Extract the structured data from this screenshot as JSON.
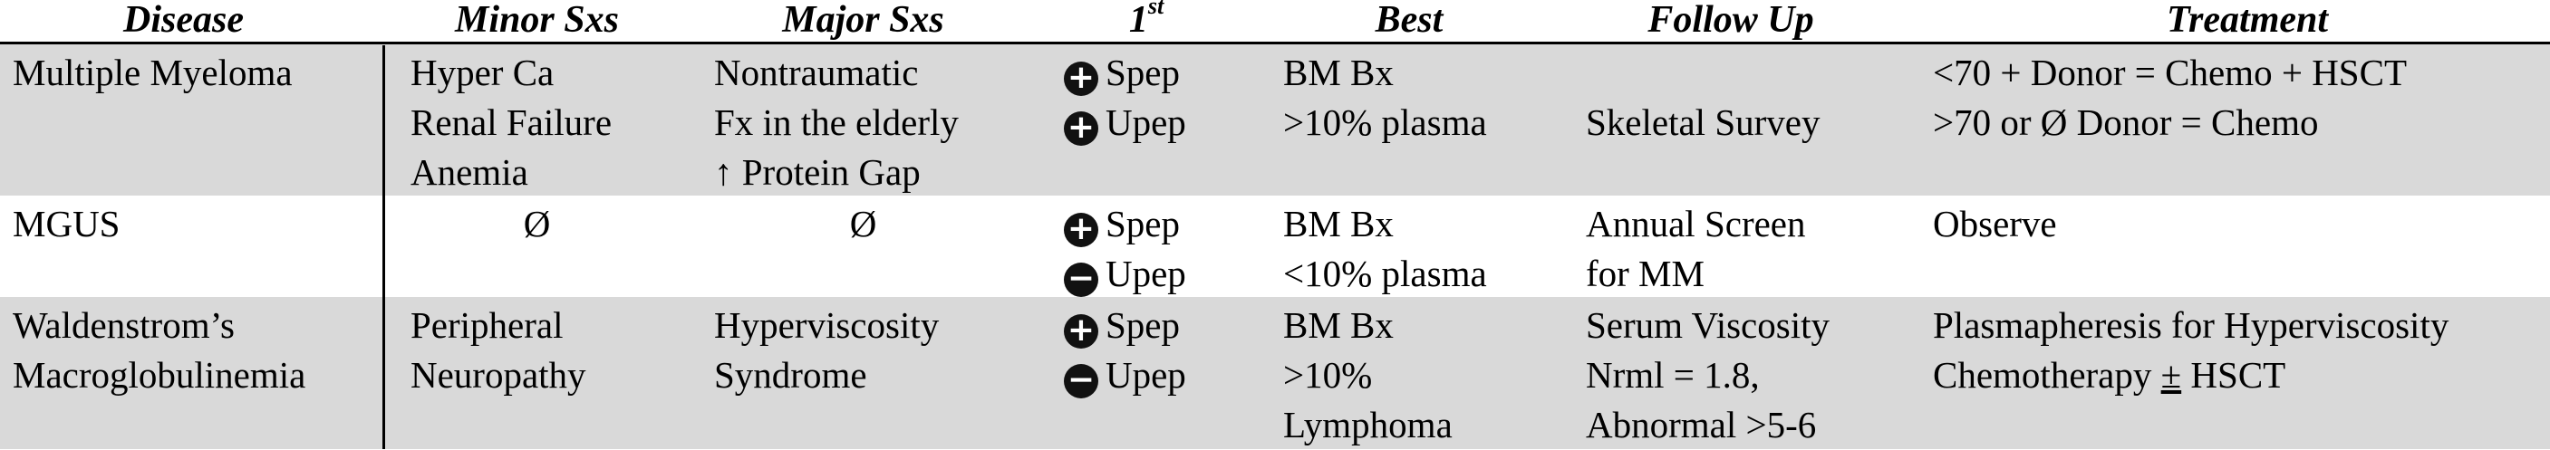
{
  "headers": {
    "disease": "Disease",
    "minor": "Minor Sxs",
    "major": "Major Sxs",
    "first_base": "1",
    "first_sup": "st",
    "best": "Best",
    "follow_up": "Follow Up",
    "treatment": "Treatment"
  },
  "rows": [
    {
      "disease": [
        "Multiple Myeloma"
      ],
      "minor": [
        "Hyper Ca",
        "Renal Failure",
        "Anemia"
      ],
      "major": [
        "Nontraumatic",
        "Fx in the elderly",
        "↑ Protein Gap"
      ],
      "first": [
        {
          "sign": "+",
          "sign_icon": "plus-circle-icon",
          "label": "Spep"
        },
        {
          "sign": "+",
          "sign_icon": "plus-circle-icon",
          "label": "Upep"
        }
      ],
      "best": [
        "BM Bx",
        ">10% plasma"
      ],
      "follow_up": [
        "",
        "Skeletal Survey"
      ],
      "treatment": [
        "<70 + Donor = Chemo + HSCT",
        ">70 or Ø Donor = Chemo"
      ]
    },
    {
      "disease": [
        "MGUS"
      ],
      "minor": [
        "Ø"
      ],
      "major": [
        "Ø"
      ],
      "first": [
        {
          "sign": "+",
          "sign_icon": "plus-circle-icon",
          "label": "Spep"
        },
        {
          "sign": "−",
          "sign_icon": "minus-circle-icon",
          "label": "Upep"
        }
      ],
      "best": [
        "BM Bx",
        "<10% plasma"
      ],
      "follow_up": [
        "Annual Screen",
        "for MM"
      ],
      "treatment": [
        "Observe"
      ]
    },
    {
      "disease": [
        "Waldenstrom’s",
        "Macroglobulinemia"
      ],
      "minor": [
        "Peripheral",
        "Neuropathy"
      ],
      "major": [
        "Hyperviscosity",
        "Syndrome"
      ],
      "first": [
        {
          "sign": "+",
          "sign_icon": "plus-circle-icon",
          "label": "Spep"
        },
        {
          "sign": "−",
          "sign_icon": "minus-circle-icon",
          "label": "Upep"
        }
      ],
      "best": [
        "BM Bx",
        ">10%",
        "Lymphoma"
      ],
      "follow_up": [
        "Serum Viscosity",
        "Nrml = 1.8,",
        "Abnormal >5-6"
      ],
      "treatment": [
        "Plasmapheresis for Hyperviscosity",
        "Chemotherapy ",
        "±",
        " HSCT"
      ]
    }
  ],
  "colors": {
    "row_shade": "#d9d9d9",
    "rule": "#000000",
    "text": "#000000"
  }
}
